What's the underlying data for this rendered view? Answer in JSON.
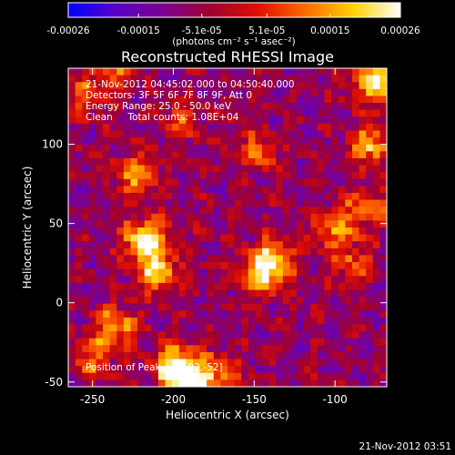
{
  "chart_data": {
    "type": "heatmap",
    "title": "Reconstructed RHESSI Image",
    "xlabel": "Heliocentric X (arcsec)",
    "ylabel": "Heliocentric Y (arcsec)",
    "xlim": [
      -265,
      -68
    ],
    "ylim": [
      -53,
      148
    ],
    "x_ticks": [
      -250,
      -200,
      -150,
      -100
    ],
    "y_ticks": [
      -50,
      0,
      50,
      100
    ],
    "colorbar": {
      "label": "(photons cm⁻² s⁻¹ asec⁻²)",
      "range": [
        -0.00026,
        0.00026
      ],
      "ticks": [
        "-0.00026",
        "-0.00015",
        "-5.1e-05",
        "5.1e-05",
        "0.00015",
        "0.00026"
      ],
      "tick_values": [
        -0.00026,
        -0.00015,
        -5.1e-05,
        5.1e-05,
        0.00015,
        0.00026
      ],
      "stops": [
        "#0000ff",
        "#5a00c8",
        "#7a0090",
        "#a00030",
        "#e01000",
        "#ff6a00",
        "#ffd000",
        "#ffffff"
      ]
    },
    "annotations": [
      "21-Nov-2012 04:45:02.000 to 04:50:40.000",
      "Detectors: 3F 5F 6F 7F 8F 9F, Att 0",
      "Energy Range: 25.0 - 50.0 keV",
      "Clean     Total counts: 1.08E+04"
    ],
    "peak_label": "Position of Peak = [-192,-52]",
    "peak": [
      -192,
      -52
    ],
    "sources": [
      {
        "x": -217,
        "y": 40,
        "intensity": 0.00026
      },
      {
        "x": -210,
        "y": 20,
        "intensity": 0.0002
      },
      {
        "x": -222,
        "y": 80,
        "intensity": 0.00018
      },
      {
        "x": -235,
        "y": -15,
        "intensity": 0.00017
      },
      {
        "x": -200,
        "y": -40,
        "intensity": 0.00024
      },
      {
        "x": -190,
        "y": -50,
        "intensity": 0.00026
      },
      {
        "x": -172,
        "y": -46,
        "intensity": 0.00014
      },
      {
        "x": -250,
        "y": -35,
        "intensity": 0.00013
      },
      {
        "x": -145,
        "y": 18,
        "intensity": 0.00022
      },
      {
        "x": -137,
        "y": 30,
        "intensity": 0.00016
      },
      {
        "x": -148,
        "y": 95,
        "intensity": 0.00013
      },
      {
        "x": -75,
        "y": 140,
        "intensity": 0.00024
      },
      {
        "x": -78,
        "y": 100,
        "intensity": 0.00018
      },
      {
        "x": -80,
        "y": 60,
        "intensity": 0.00013
      },
      {
        "x": -90,
        "y": 25,
        "intensity": 0.00012
      },
      {
        "x": -100,
        "y": 47,
        "intensity": 0.00016
      },
      {
        "x": -195,
        "y": 115,
        "intensity": 0.0001
      },
      {
        "x": -255,
        "y": 130,
        "intensity": 0.0001
      },
      {
        "x": -238,
        "y": 145,
        "intensity": 0.00011
      }
    ]
  },
  "footer": {
    "timestamp": "21-Nov-2012 03:51"
  },
  "colors": {
    "background": "#000000",
    "foreground": "#ffffff"
  }
}
